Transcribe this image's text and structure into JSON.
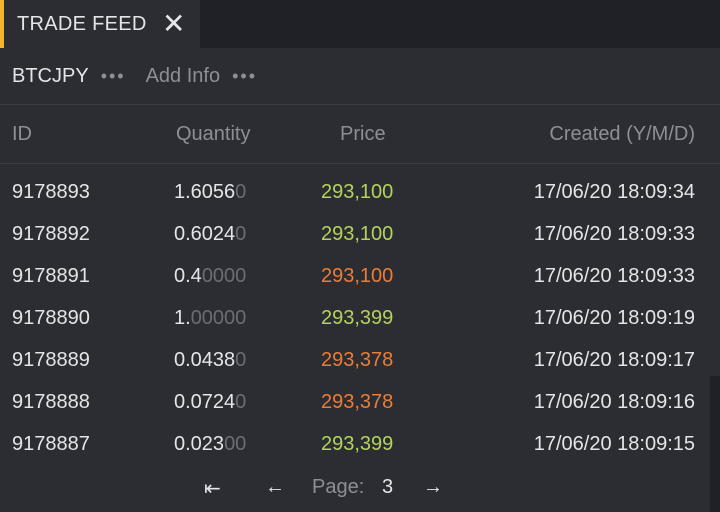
{
  "tab": {
    "title": "TRADE FEED",
    "close": "✕"
  },
  "toolbar": {
    "symbol": "BTCJPY",
    "dots": "•••",
    "add_info": "Add Info"
  },
  "columns": {
    "id": "ID",
    "quantity": "Quantity",
    "price": "Price",
    "created": "Created (Y/M/D)"
  },
  "trades": [
    {
      "id": "9178893",
      "qty_sig": "1.6056",
      "qty_pad": "0",
      "price": "293,100",
      "side": "up",
      "created": "17/06/20 18:09:34"
    },
    {
      "id": "9178892",
      "qty_sig": "0.6024",
      "qty_pad": "0",
      "price": "293,100",
      "side": "up",
      "created": "17/06/20 18:09:33"
    },
    {
      "id": "9178891",
      "qty_sig": "0.4",
      "qty_pad": "0000",
      "price": "293,100",
      "side": "down",
      "created": "17/06/20 18:09:33"
    },
    {
      "id": "9178890",
      "qty_sig": "1.",
      "qty_pad": "00000",
      "price": "293,399",
      "side": "up",
      "created": "17/06/20 18:09:19"
    },
    {
      "id": "9178889",
      "qty_sig": "0.0438",
      "qty_pad": "0",
      "price": "293,378",
      "side": "down",
      "created": "17/06/20 18:09:17"
    },
    {
      "id": "9178888",
      "qty_sig": "0.0724",
      "qty_pad": "0",
      "price": "293,378",
      "side": "down",
      "created": "17/06/20 18:09:16"
    },
    {
      "id": "9178887",
      "qty_sig": "0.023",
      "qty_pad": "00",
      "price": "293,399",
      "side": "up",
      "created": "17/06/20 18:09:15"
    }
  ],
  "colors": {
    "up": "#b5d35a",
    "down": "#ec7d36",
    "accent": "#f3b52f"
  },
  "pager": {
    "first": "⇤",
    "prev": "←",
    "label": "Page:",
    "page": "3",
    "next": "→"
  }
}
